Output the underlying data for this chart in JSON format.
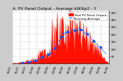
{
  "title": "A. PV Panel Output - Average kW/kp2 - Y",
  "legend_pv": "Total PV Panel Output",
  "legend_avg": "Running Average",
  "bar_color": "#ff1100",
  "avg_color": "#0055ff",
  "background_color": "#cccccc",
  "plot_bg_color": "#ffffff",
  "grid_color": "#999999",
  "n_points": 150,
  "y_max": 360,
  "y_ticks": [
    50,
    100,
    150,
    200,
    250,
    300,
    350
  ],
  "title_fontsize": 4.2,
  "legend_fontsize": 3.2,
  "tick_fontsize": 3.0
}
